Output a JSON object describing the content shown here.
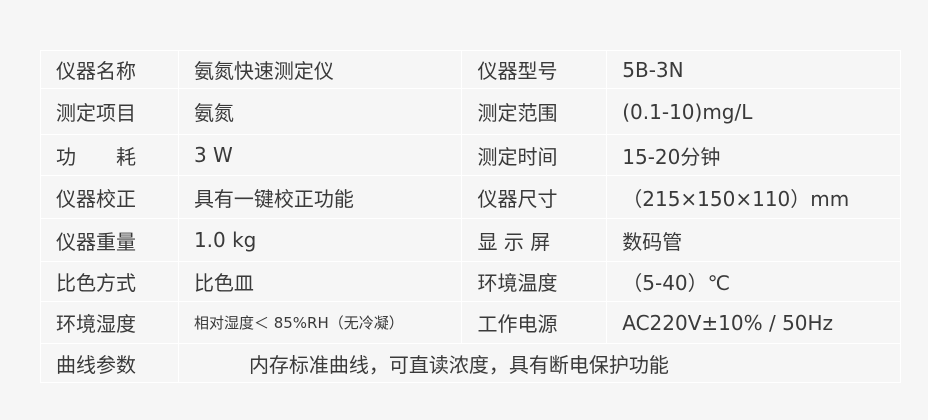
{
  "rows": [
    {
      "label1": "仪器名称",
      "value1": "氨氮快速测定仪",
      "label2": "仪器型号",
      "value2": "5B-3N"
    },
    {
      "label1": "测定项目",
      "value1": "氨氮",
      "label2": "测定范围",
      "value2": "(0.1-10)mg/L"
    },
    {
      "label1": "功　　耗",
      "value1": "3 W",
      "label2": "测定时间",
      "value2": "15-20分钟"
    },
    {
      "label1": "仪器校正",
      "value1": "具有一键校正功能",
      "label2": "仪器尺寸",
      "value2": "（215×150×110）mm"
    },
    {
      "label1": "仪器重量",
      "value1": "1.0 kg",
      "label2": "显 示 屏",
      "value2": "数码管"
    },
    {
      "label1": "比色方式",
      "value1": "比色皿",
      "label2": "环境温度",
      "value2": "（5-40）℃"
    },
    {
      "label1": "环境湿度",
      "value1": "相对湿度＜ 85%RH（无冷凝）",
      "label2": "工作电源",
      "value2": "AC220V±10% / 50Hz"
    }
  ],
  "last_row": {
    "label": "曲线参数",
    "value": "内存标准曲线，可直读浓度，具有断电保护功能"
  }
}
